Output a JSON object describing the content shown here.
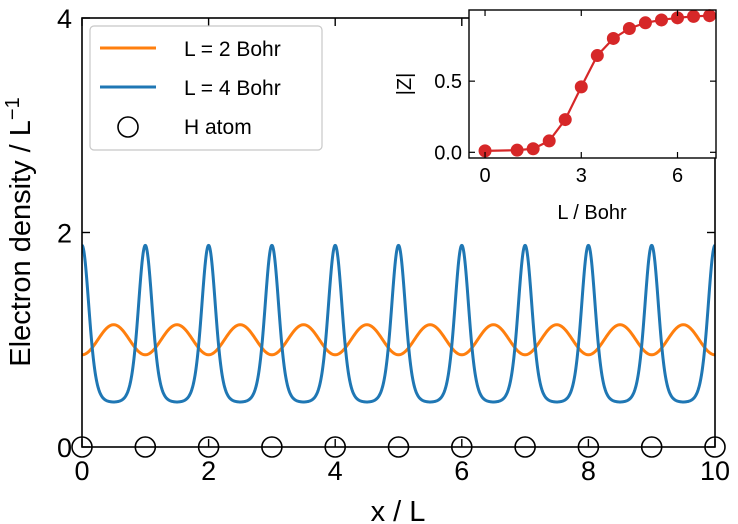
{
  "chart_data": [
    {
      "type": "line",
      "xlabel": "x / L",
      "ylabel": "Electron density / L",
      "ylabel_superscript": "−1",
      "xlim": [
        0,
        10
      ],
      "ylim": [
        0,
        4
      ],
      "xticks": [
        0,
        2,
        4,
        6,
        8,
        10
      ],
      "yticks": [
        0,
        2,
        4
      ],
      "grid": false,
      "legend_position": "top-left",
      "series": [
        {
          "name": "L = 2 Bohr",
          "color": "#ff7f0e",
          "style": "line",
          "periodic": {
            "period": 1,
            "mean": 1.0,
            "amplitude": 0.14,
            "max_at": 0.5
          }
        },
        {
          "name": "L = 4 Bohr",
          "color": "#1f77b4",
          "style": "line",
          "periodic": {
            "period": 1,
            "mean": 1.15,
            "amplitude": 0.73,
            "max_at": 0.0,
            "peak_sharpness": 2.2
          }
        },
        {
          "name": "H atom",
          "color": "#000000",
          "style": "open-circle-markers",
          "x": [
            0,
            1,
            2,
            3,
            4,
            5,
            6,
            7,
            8,
            9,
            10
          ],
          "y": [
            0,
            0,
            0,
            0,
            0,
            0,
            0,
            0,
            0,
            0,
            0
          ]
        }
      ]
    },
    {
      "type": "line",
      "position": "inset-top-right",
      "xlabel": "L / Bohr",
      "ylabel": "|Z|",
      "xlim": [
        -0.5,
        7.2
      ],
      "ylim": [
        -0.04,
        1.0
      ],
      "xticks": [
        0,
        3,
        6
      ],
      "yticks": [
        0.0,
        0.5
      ],
      "ytick_labels": [
        "0.0",
        "0.5"
      ],
      "series": [
        {
          "color": "#d62728",
          "x": [
            0.0,
            1.0,
            1.5,
            2.0,
            2.5,
            3.0,
            3.5,
            4.0,
            4.5,
            5.0,
            5.5,
            6.0,
            6.5,
            7.0
          ],
          "y": [
            0.01,
            0.015,
            0.025,
            0.08,
            0.23,
            0.46,
            0.68,
            0.8,
            0.87,
            0.91,
            0.93,
            0.945,
            0.955,
            0.96
          ]
        }
      ]
    }
  ]
}
